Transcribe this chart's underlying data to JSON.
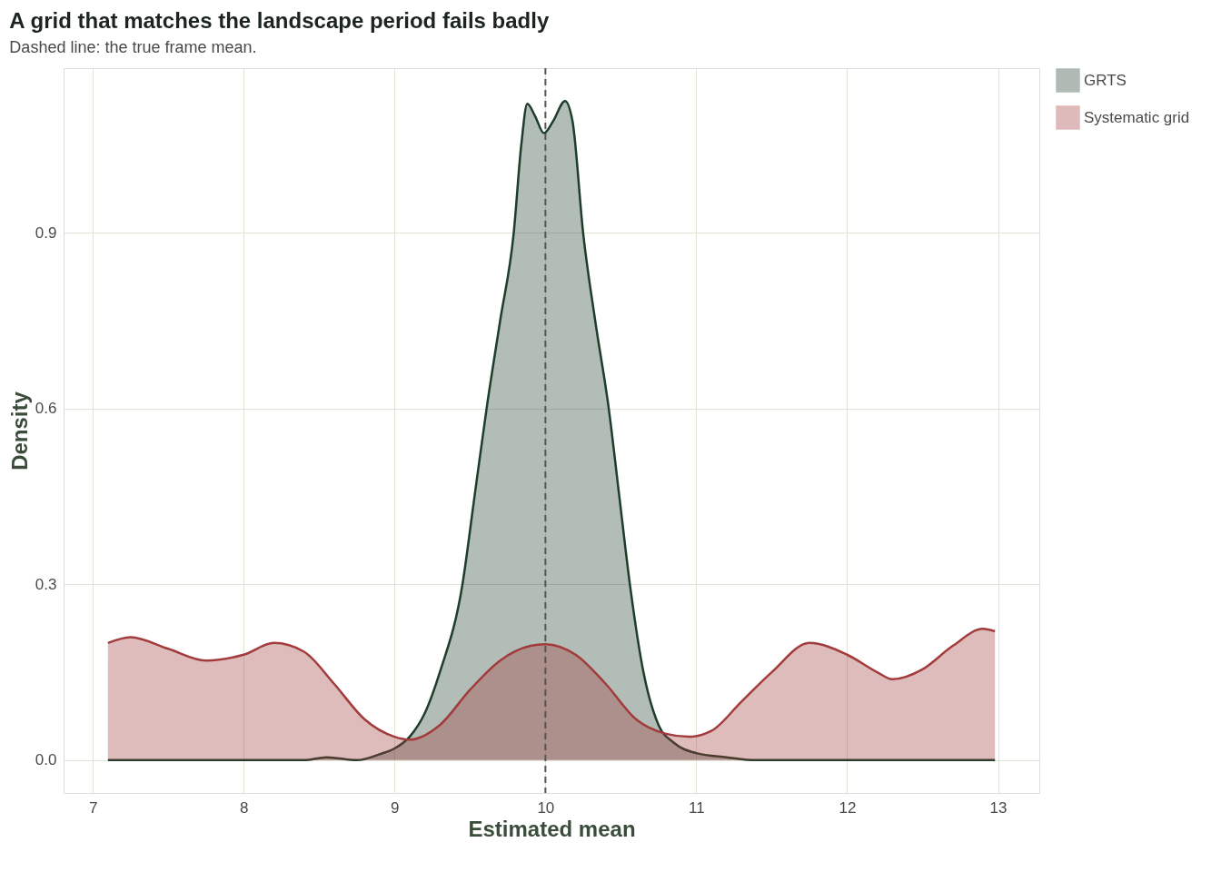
{
  "chart_data": {
    "type": "area",
    "title": "A grid that matches the landscape period fails badly",
    "subtitle": "Dashed line: the true frame mean.",
    "xlabel": "Estimated mean",
    "ylabel": "Density",
    "series": [
      {
        "name": "GRTS",
        "color": "#1f3d2b",
        "x": [
          7.1,
          8.0,
          8.4,
          8.55,
          8.75,
          8.9,
          9.0,
          9.1,
          9.2,
          9.3,
          9.45,
          9.53,
          9.61,
          9.7,
          9.79,
          9.84,
          9.88,
          9.93,
          9.99,
          10.05,
          10.13,
          10.18,
          10.25,
          10.33,
          10.42,
          10.49,
          10.56,
          10.65,
          10.75,
          10.85,
          11.0,
          11.2,
          11.4,
          12.0,
          12.98
        ],
        "values": [
          0,
          0,
          0,
          0.005,
          0,
          0.01,
          0.02,
          0.04,
          0.08,
          0.15,
          0.3,
          0.45,
          0.6,
          0.75,
          0.9,
          1.05,
          1.12,
          1.1,
          1.07,
          1.09,
          1.125,
          1.09,
          0.9,
          0.75,
          0.6,
          0.45,
          0.3,
          0.15,
          0.06,
          0.03,
          0.012,
          0.005,
          0,
          0,
          0
        ]
      },
      {
        "name": "Systematic grid",
        "color": "#a23b3b",
        "x": [
          7.1,
          7.25,
          7.5,
          7.75,
          8.0,
          8.2,
          8.4,
          8.6,
          8.8,
          9.0,
          9.1,
          9.3,
          9.5,
          9.7,
          9.9,
          10.0,
          10.2,
          10.4,
          10.6,
          10.8,
          10.95,
          11.1,
          11.3,
          11.5,
          11.75,
          12.0,
          12.2,
          12.3,
          12.5,
          12.7,
          12.9,
          12.98
        ],
        "values": [
          0.2,
          0.21,
          0.19,
          0.17,
          0.18,
          0.2,
          0.185,
          0.13,
          0.07,
          0.04,
          0.035,
          0.06,
          0.12,
          0.17,
          0.195,
          0.198,
          0.18,
          0.13,
          0.07,
          0.045,
          0.04,
          0.05,
          0.1,
          0.15,
          0.2,
          0.18,
          0.15,
          0.138,
          0.155,
          0.195,
          0.224,
          0.22
        ]
      }
    ],
    "xlim": [
      6.806,
      13.274
    ],
    "ylim": [
      -0.056,
      1.181
    ],
    "xticks": [
      7,
      8,
      9,
      10,
      11,
      12,
      13
    ],
    "yticks": [
      {
        "value": 0,
        "label": "0.0"
      },
      {
        "value": 0.3,
        "label": "0.3"
      },
      {
        "value": 0.6,
        "label": "0.6"
      },
      {
        "value": 0.9,
        "label": "0.9"
      }
    ],
    "ref_lines": [
      {
        "axis": "x",
        "value": 10,
        "color": "#555555",
        "line_style": "dashed"
      }
    ],
    "grid": true,
    "legend": "right"
  }
}
